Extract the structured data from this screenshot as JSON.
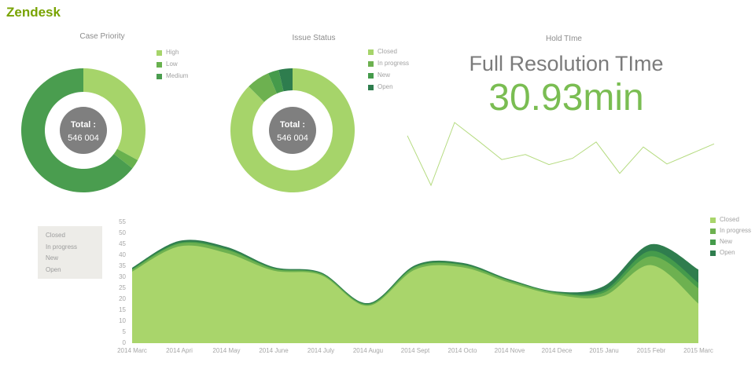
{
  "logo": {
    "text": "Zendesk",
    "color": "#78a300"
  },
  "chart_data": [
    {
      "type": "pie",
      "title": "Case Priority",
      "labels": [
        "High",
        "Low",
        "Medium"
      ],
      "values": [
        33,
        2.5,
        64.5
      ],
      "unit": "percent_of_total",
      "colors": [
        "#a6d46a",
        "#68b14e",
        "#4a9d4f"
      ],
      "center_label": "Total :",
      "center_value": "546 004",
      "center_bg": "#7f7f7f",
      "legend_position": "right",
      "donut": true
    },
    {
      "type": "pie",
      "title": "Issue Status",
      "labels": [
        "Closed",
        "In progress",
        "New",
        "Open"
      ],
      "values": [
        87.5,
        6.1,
        2.8,
        3.6
      ],
      "unit": "percent_of_total",
      "colors": [
        "#a6d46a",
        "#6db150",
        "#459b4b",
        "#2e7d4e"
      ],
      "center_label": "Total :",
      "center_value": "546 004",
      "center_bg": "#7f7f7f",
      "legend_position": "right",
      "donut": true
    },
    {
      "type": "line",
      "title": "Hold TIme",
      "subtitle": "Full Resolution TIme",
      "big_value": "30.93min",
      "value_color": "#7abd52",
      "color": "#b5db80",
      "values": [
        79,
        0,
        100,
        71,
        41,
        49,
        33,
        43,
        69,
        19,
        61,
        34,
        50,
        66
      ],
      "note": "sparkline, relative scale 0-100, no visible axes"
    },
    {
      "type": "area",
      "stacked": true,
      "categories": [
        "2014 Marc",
        "2014 Apri",
        "2014 May",
        "2014 June",
        "2014 July",
        "2014 Augu",
        "2014 Sept",
        "2014 Octo",
        "2014 Nove",
        "2014 Dece",
        "2015 Janu",
        "2015 Febr",
        "2015 Marc"
      ],
      "series": [
        {
          "name": "Closed",
          "color": "#a9d56b",
          "values": [
            32.5,
            44.0,
            41.0,
            33.0,
            31.0,
            17.0,
            33.5,
            34.5,
            27.5,
            22.0,
            21.5,
            35.5,
            18.0
          ]
        },
        {
          "name": "In progress",
          "color": "#6db150",
          "values": [
            0.9,
            1.2,
            1.5,
            0.8,
            0.6,
            0.5,
            1.0,
            1.0,
            0.8,
            0.8,
            1.5,
            4.0,
            7.0
          ]
        },
        {
          "name": "New",
          "color": "#459b4b",
          "values": [
            0.3,
            0.5,
            0.5,
            0.3,
            0.2,
            0.3,
            0.4,
            0.4,
            0.3,
            0.3,
            1.0,
            2.5,
            2.5
          ]
        },
        {
          "name": "Open",
          "color": "#2f7d4e",
          "values": [
            0.6,
            0.8,
            0.8,
            0.5,
            0.4,
            0.4,
            0.6,
            0.6,
            0.4,
            0.4,
            2.0,
            3.0,
            6.0
          ]
        }
      ],
      "ylim": [
        0,
        55
      ],
      "y_ticks": [
        0,
        5,
        10,
        15,
        20,
        25,
        30,
        35,
        40,
        45,
        50,
        55
      ],
      "grid": false,
      "legend_position": "right",
      "filter_box_items": [
        "Closed",
        "In progress",
        "New",
        "Open"
      ]
    }
  ]
}
